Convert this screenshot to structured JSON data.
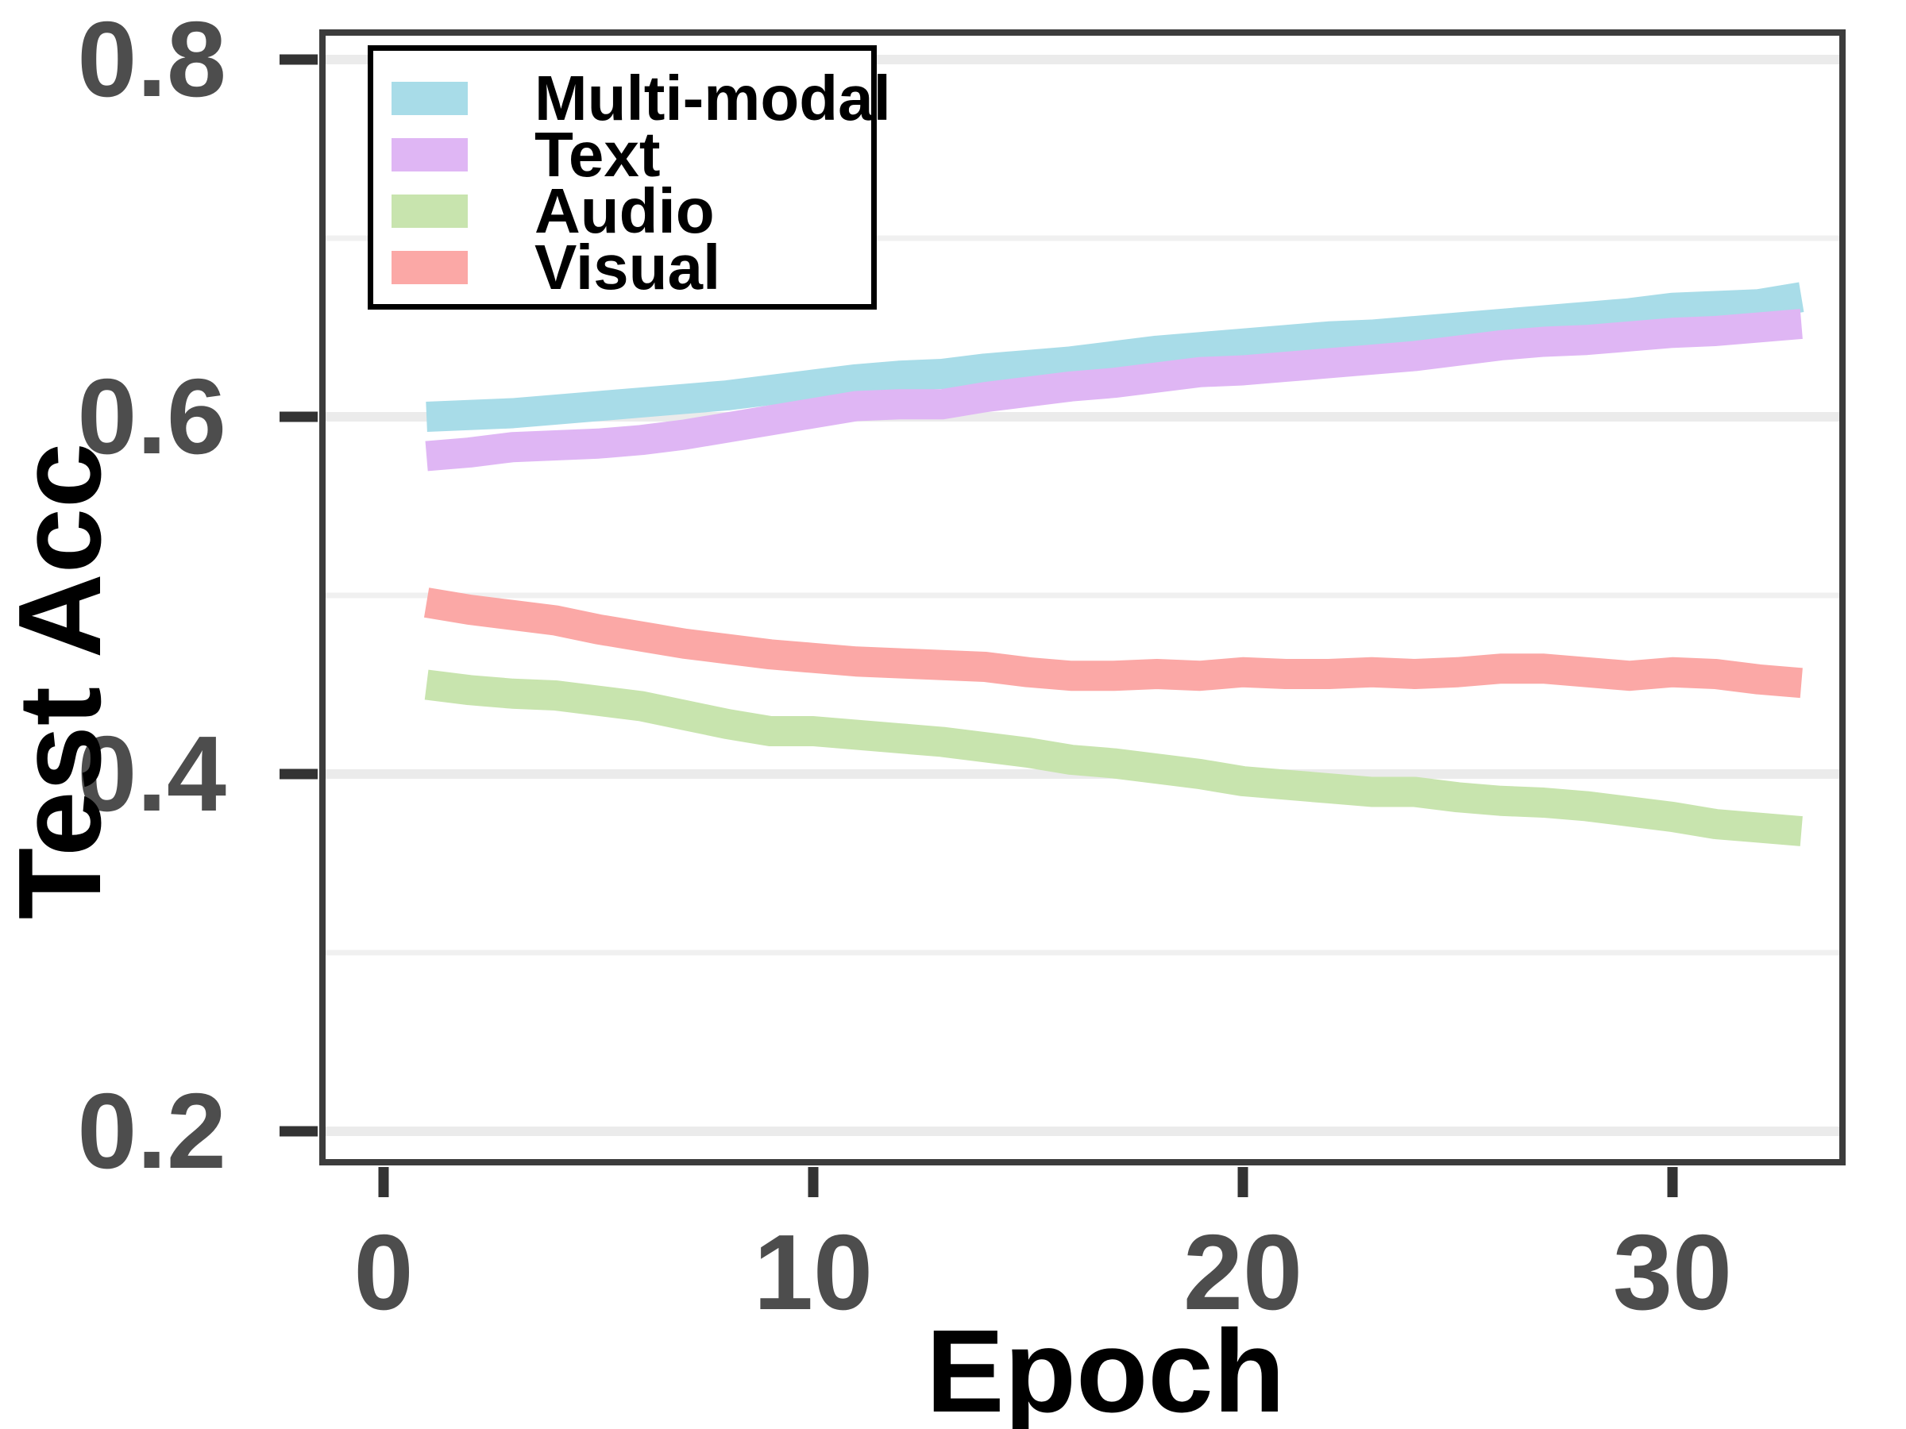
{
  "chart_data": {
    "type": "line",
    "title": "",
    "xlabel": "Epoch",
    "ylabel": "Test Acc",
    "x_axis": {
      "label": "Epoch",
      "ticks": [
        0,
        10,
        20,
        30
      ],
      "tick_labels": [
        "0",
        "10",
        "20",
        "30"
      ],
      "range": [
        -1.5,
        34
      ]
    },
    "y_axis": {
      "label": "Test Acc",
      "ticks": [
        0.2,
        0.4,
        0.6,
        0.8
      ],
      "tick_labels": [
        "0.2",
        "0.4",
        "0.6",
        "0.8"
      ],
      "minor_gridlines": [
        0.3,
        0.5,
        0.7
      ],
      "range": [
        0.18,
        0.82
      ]
    },
    "legend": {
      "position": "top-left",
      "entries": [
        "Multi-modal",
        "Text",
        "Audio",
        "Visual"
      ]
    },
    "grid": true,
    "epochs": [
      1,
      2,
      3,
      4,
      5,
      6,
      7,
      8,
      9,
      10,
      11,
      12,
      13,
      14,
      15,
      16,
      17,
      18,
      19,
      20,
      21,
      22,
      23,
      24,
      25,
      26,
      27,
      28,
      29,
      30,
      31,
      32,
      33
    ],
    "series": [
      {
        "name": "Multi-modal",
        "color": "#A8DCE8",
        "values": [
          0.6,
          0.601,
          0.602,
          0.604,
          0.606,
          0.608,
          0.61,
          0.612,
          0.615,
          0.618,
          0.621,
          0.623,
          0.624,
          0.627,
          0.629,
          0.631,
          0.634,
          0.637,
          0.639,
          0.641,
          0.643,
          0.645,
          0.646,
          0.648,
          0.65,
          0.652,
          0.654,
          0.656,
          0.658,
          0.661,
          0.662,
          0.663,
          0.667
        ]
      },
      {
        "name": "Text",
        "color": "#DFB6F4",
        "values": [
          0.578,
          0.58,
          0.583,
          0.584,
          0.585,
          0.587,
          0.59,
          0.594,
          0.598,
          0.602,
          0.606,
          0.607,
          0.607,
          0.611,
          0.614,
          0.617,
          0.619,
          0.622,
          0.625,
          0.626,
          0.628,
          0.63,
          0.632,
          0.634,
          0.637,
          0.64,
          0.642,
          0.643,
          0.645,
          0.647,
          0.648,
          0.65,
          0.652
        ]
      },
      {
        "name": "Audio",
        "color": "#C8E4AE",
        "values": [
          0.45,
          0.447,
          0.445,
          0.444,
          0.441,
          0.438,
          0.433,
          0.428,
          0.424,
          0.424,
          0.422,
          0.42,
          0.418,
          0.415,
          0.412,
          0.408,
          0.406,
          0.403,
          0.4,
          0.396,
          0.394,
          0.392,
          0.39,
          0.39,
          0.387,
          0.385,
          0.384,
          0.382,
          0.379,
          0.376,
          0.372,
          0.37,
          0.368
        ]
      },
      {
        "name": "Visual",
        "color": "#FBA8A6",
        "values": [
          0.496,
          0.492,
          0.489,
          0.486,
          0.481,
          0.477,
          0.473,
          0.47,
          0.467,
          0.465,
          0.463,
          0.462,
          0.461,
          0.46,
          0.457,
          0.455,
          0.455,
          0.456,
          0.455,
          0.457,
          0.456,
          0.456,
          0.457,
          0.456,
          0.457,
          0.459,
          0.459,
          0.457,
          0.455,
          0.457,
          0.456,
          0.453,
          0.451
        ]
      }
    ],
    "colors": {
      "grid_major": "#EBEBEB",
      "grid_minor": "#F0F0F0",
      "panel_border": "#3C3C3C",
      "tick_mark": "#333333",
      "tick_text": "#4D4D4D",
      "title_text": "#000000",
      "legend_border": "#000000",
      "background": "#FFFFFF"
    }
  }
}
